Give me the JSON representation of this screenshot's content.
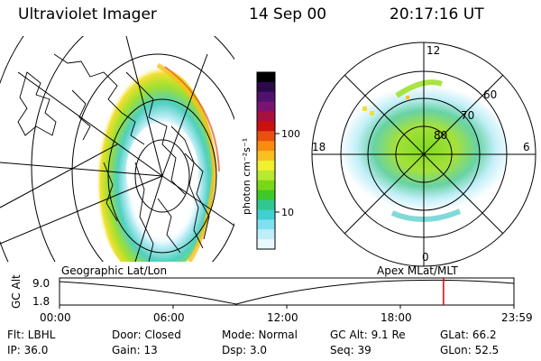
{
  "header": {
    "instrument": "Ultraviolet Imager",
    "date": "14 Sep 00",
    "time": "20:17:16 UT"
  },
  "colorbar": {
    "unit_label": "photon cm⁻²s⁻¹",
    "ticks": [
      "100",
      "10"
    ],
    "colors": [
      "#000000",
      "#2a0a4a",
      "#50126e",
      "#7a1470",
      "#a81040",
      "#cc1010",
      "#e85010",
      "#f88c10",
      "#f8c020",
      "#f0f030",
      "#b8e830",
      "#78d818",
      "#40c828",
      "#30c890",
      "#40d0d0",
      "#80e0f0",
      "#c0eef8",
      "#e8f8fc"
    ]
  },
  "polar_plot": {
    "mlt_labels": [
      "12",
      "18",
      "6",
      "0"
    ],
    "lat_labels": [
      "60",
      "70",
      "80"
    ]
  },
  "map_labels": {
    "left": "Geographic Lat/Lon",
    "right": "Apex MLat/MLT"
  },
  "altitude_plot": {
    "ylabel": "GC Alt",
    "yticks": [
      "9.0",
      "1.8"
    ],
    "xticks": [
      "00:00",
      "06:00",
      "12:00",
      "18:00",
      "23:59"
    ],
    "marker_time_fraction": 0.845
  },
  "status": {
    "flt": "Flt: LBHL",
    "ip": "IP: 36.0",
    "door": "Door: Closed",
    "gain": "Gain: 13",
    "mode": "Mode: Normal",
    "dsp": "Dsp:   3.0",
    "gc_alt": "GC Alt: 9.1 Re",
    "seq": "Seq: 39",
    "glat": "GLat:   66.2",
    "glon": "GLon:   52.5"
  }
}
